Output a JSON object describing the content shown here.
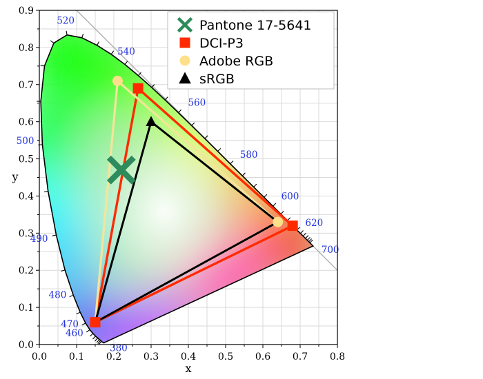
{
  "chart_data": {
    "type": "scatter",
    "title": "",
    "xlabel": "x",
    "ylabel": "y",
    "xlim": [
      0.0,
      0.8
    ],
    "ylim": [
      0.0,
      0.9
    ],
    "x_ticks": [
      "0.0",
      "0.1",
      "0.2",
      "0.3",
      "0.4",
      "0.5",
      "0.6",
      "0.7",
      "0.8"
    ],
    "y_ticks": [
      "0.0",
      "0.1",
      "0.2",
      "0.3",
      "0.4",
      "0.5",
      "0.6",
      "0.7",
      "0.8",
      "0.9"
    ],
    "grid": true,
    "legend_position": "top-right",
    "spectral_locus": [
      [
        0.1741,
        0.005
      ],
      [
        0.1738,
        0.0049
      ],
      [
        0.1736,
        0.0049
      ],
      [
        0.1733,
        0.0048
      ],
      [
        0.173,
        0.0048
      ],
      [
        0.1726,
        0.0048
      ],
      [
        0.1721,
        0.0048
      ],
      [
        0.1714,
        0.0051
      ],
      [
        0.1703,
        0.0058
      ],
      [
        0.1689,
        0.0069
      ],
      [
        0.1669,
        0.0086
      ],
      [
        0.1644,
        0.0109
      ],
      [
        0.1611,
        0.0138
      ],
      [
        0.1566,
        0.0177
      ],
      [
        0.151,
        0.0227
      ],
      [
        0.144,
        0.0297
      ],
      [
        0.1355,
        0.0399
      ],
      [
        0.1241,
        0.0578
      ],
      [
        0.1096,
        0.0868
      ],
      [
        0.0913,
        0.1327
      ],
      [
        0.0687,
        0.2007
      ],
      [
        0.0454,
        0.295
      ],
      [
        0.0235,
        0.4127
      ],
      [
        0.0082,
        0.5384
      ],
      [
        0.0039,
        0.6548
      ],
      [
        0.0139,
        0.7502
      ],
      [
        0.0389,
        0.812
      ],
      [
        0.0743,
        0.8338
      ],
      [
        0.1142,
        0.8262
      ],
      [
        0.1547,
        0.8059
      ],
      [
        0.1929,
        0.7816
      ],
      [
        0.2296,
        0.7543
      ],
      [
        0.2658,
        0.7243
      ],
      [
        0.3016,
        0.6923
      ],
      [
        0.3373,
        0.6589
      ],
      [
        0.3731,
        0.6245
      ],
      [
        0.4087,
        0.5896
      ],
      [
        0.4441,
        0.5547
      ],
      [
        0.4788,
        0.5202
      ],
      [
        0.5125,
        0.4866
      ],
      [
        0.5448,
        0.4544
      ],
      [
        0.5752,
        0.4242
      ],
      [
        0.6029,
        0.3965
      ],
      [
        0.627,
        0.3725
      ],
      [
        0.6482,
        0.3514
      ],
      [
        0.6658,
        0.334
      ],
      [
        0.6801,
        0.3197
      ],
      [
        0.6915,
        0.3083
      ],
      [
        0.7006,
        0.2993
      ],
      [
        0.7079,
        0.292
      ],
      [
        0.714,
        0.2859
      ],
      [
        0.719,
        0.2809
      ],
      [
        0.723,
        0.277
      ],
      [
        0.726,
        0.274
      ],
      [
        0.7283,
        0.2717
      ],
      [
        0.73,
        0.27
      ],
      [
        0.7311,
        0.2689
      ],
      [
        0.732,
        0.268
      ],
      [
        0.7327,
        0.2673
      ],
      [
        0.7334,
        0.2666
      ],
      [
        0.734,
        0.266
      ],
      [
        0.7344,
        0.2656
      ],
      [
        0.7346,
        0.2654
      ],
      [
        0.7347,
        0.2653
      ]
    ],
    "wavelength_labels": [
      {
        "label": "380",
        "x": 0.1741,
        "y": 0.005
      },
      {
        "label": "460",
        "x": 0.144,
        "y": 0.0297
      },
      {
        "label": "470",
        "x": 0.1241,
        "y": 0.0578
      },
      {
        "label": "480",
        "x": 0.0913,
        "y": 0.1327
      },
      {
        "label": "490",
        "x": 0.0454,
        "y": 0.295
      },
      {
        "label": "500",
        "x": 0.0082,
        "y": 0.5384
      },
      {
        "label": "520",
        "x": 0.0743,
        "y": 0.8338
      },
      {
        "label": "540",
        "x": 0.2296,
        "y": 0.7543
      },
      {
        "label": "560",
        "x": 0.3731,
        "y": 0.6245
      },
      {
        "label": "580",
        "x": 0.5125,
        "y": 0.4866
      },
      {
        "label": "600",
        "x": 0.627,
        "y": 0.3725
      },
      {
        "label": "620",
        "x": 0.6915,
        "y": 0.3083
      },
      {
        "label": "700",
        "x": 0.7347,
        "y": 0.2653
      }
    ],
    "series": [
      {
        "name": "Pantone 17-5641",
        "marker": "x",
        "color": "#2e8b5c",
        "points": [
          [
            0.22,
            0.47
          ]
        ]
      },
      {
        "name": "DCI-P3",
        "marker": "square",
        "color": "#ff2a00",
        "points": [
          [
            0.68,
            0.32
          ],
          [
            0.265,
            0.69
          ],
          [
            0.15,
            0.06
          ]
        ]
      },
      {
        "name": "Adobe RGB",
        "marker": "circle",
        "color": "#ffe08a",
        "points": [
          [
            0.64,
            0.33
          ],
          [
            0.21,
            0.71
          ],
          [
            0.15,
            0.06
          ]
        ]
      },
      {
        "name": "sRGB",
        "marker": "triangle",
        "color": "#000000",
        "points": [
          [
            0.64,
            0.33
          ],
          [
            0.3,
            0.6
          ],
          [
            0.15,
            0.06
          ]
        ]
      }
    ]
  }
}
